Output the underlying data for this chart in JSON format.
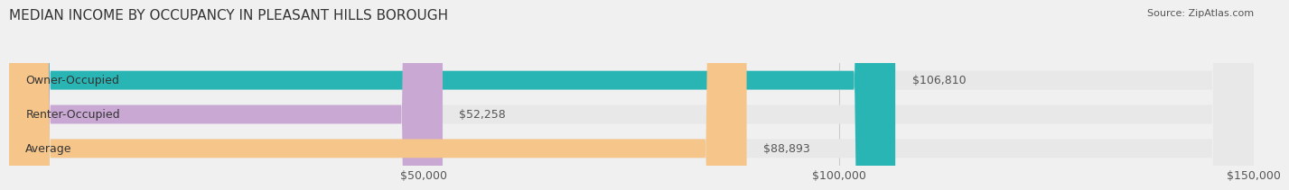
{
  "title": "MEDIAN INCOME BY OCCUPANCY IN PLEASANT HILLS BOROUGH",
  "source": "Source: ZipAtlas.com",
  "categories": [
    "Owner-Occupied",
    "Renter-Occupied",
    "Average"
  ],
  "values": [
    106810,
    52258,
    88893
  ],
  "bar_colors": [
    "#2ab5b5",
    "#c9a8d4",
    "#f5c58a"
  ],
  "bar_labels": [
    "$106,810",
    "$52,258",
    "$88,893"
  ],
  "xlim": [
    0,
    150000
  ],
  "xticklabels": [
    "$50,000",
    "$100,000",
    "$150,000"
  ],
  "background_color": "#f0f0f0",
  "bar_bg_color": "#e8e8e8",
  "title_fontsize": 11,
  "source_fontsize": 8,
  "label_fontsize": 9,
  "tick_fontsize": 9,
  "bar_height": 0.55,
  "bar_label_color": "#555555"
}
